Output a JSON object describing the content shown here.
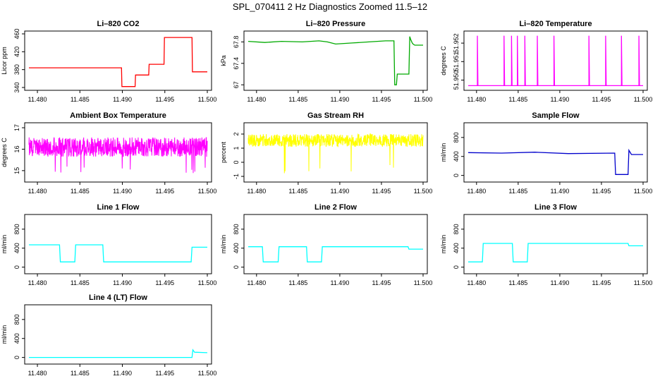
{
  "title": "SPL_070411  2 Hz Diagnostics Zoomed 11.5–12",
  "x_ticks": [
    "11.480",
    "11.485",
    "11.490",
    "11.495",
    "11.500"
  ],
  "chart_data": [
    {
      "type": "line",
      "title": "Li–820 CO2",
      "ylabel": "Licor ppm",
      "color": "#ff0000",
      "xlim": [
        11.479,
        11.5
      ],
      "ylim": [
        340,
        460
      ],
      "yticks": [
        340,
        380,
        420,
        460
      ],
      "series": [
        {
          "x": [
            11.479,
            11.4899,
            11.48995,
            11.4915,
            11.49155,
            11.4931,
            11.49315,
            11.4949,
            11.49495,
            11.4982,
            11.49825,
            11.5
          ],
          "y": [
            384,
            384,
            342,
            342,
            368,
            368,
            392,
            392,
            452,
            452,
            375,
            375
          ]
        }
      ]
    },
    {
      "type": "line",
      "title": "Li–820 Pressure",
      "ylabel": "kPa",
      "color": "#00aa00",
      "xlim": [
        11.479,
        11.5
      ],
      "ylim": [
        66.95,
        67.95
      ],
      "yticks": [
        67.0,
        67.4,
        67.8
      ],
      "series": [
        {
          "x": [
            11.479,
            11.481,
            11.483,
            11.4855,
            11.4875,
            11.4885,
            11.4895,
            11.4915,
            11.4935,
            11.4955,
            11.4965,
            11.4966,
            11.4968,
            11.4969,
            11.4983,
            11.4984,
            11.4985,
            11.4987,
            11.4988,
            11.499,
            11.5
          ],
          "y": [
            67.81,
            67.79,
            67.81,
            67.8,
            67.82,
            67.8,
            67.76,
            67.78,
            67.8,
            67.82,
            67.82,
            67.0,
            67.0,
            67.2,
            67.2,
            67.9,
            67.85,
            67.78,
            67.76,
            67.74,
            67.74
          ]
        }
      ]
    },
    {
      "type": "line",
      "title": "Li–820 Temperature",
      "ylabel": "degrees C",
      "color": "#ff00ff",
      "xlim": [
        11.479,
        11.5
      ],
      "ylim": [
        51.9496,
        51.9525
      ],
      "yticks": [
        51.95,
        51.951,
        51.952
      ],
      "ytick_labels": [
        "51.950",
        "51.951",
        "51.952"
      ],
      "baseline": 51.9497,
      "spike_top": 51.9524,
      "spikes_x": [
        11.4801,
        11.4833,
        11.4842,
        11.4849,
        11.4858,
        11.4873,
        11.4893,
        11.4935,
        11.4955,
        11.4974,
        11.4995
      ]
    },
    {
      "type": "line",
      "title": "Ambient Box Temperature",
      "ylabel": "degrees C",
      "color": "#ff00ff",
      "xlim": [
        11.479,
        11.5
      ],
      "ylim": [
        14.6,
        17.1
      ],
      "yticks": [
        15.0,
        16.0,
        17.0
      ],
      "noise": {
        "center": 16.1,
        "amplitude": 0.45,
        "min": 14.8,
        "max": 17.0
      }
    },
    {
      "type": "line",
      "title": "Gas Stream RH",
      "ylabel": "percent",
      "color": "#ffff00",
      "xlim": [
        11.479,
        11.5
      ],
      "ylim": [
        -1.2,
        2.6
      ],
      "yticks": [
        -1,
        0,
        1,
        2
      ],
      "noise": {
        "center": 1.55,
        "amplitude": 0.45,
        "min": -1.1,
        "max": 2.6
      }
    },
    {
      "type": "line",
      "title": "Sample Flow",
      "ylabel": "ml/min",
      "color": "#0000cc",
      "xlim": [
        11.479,
        11.5
      ],
      "ylim": [
        -80,
        1050
      ],
      "yticks": [
        0,
        400,
        800
      ],
      "series": [
        {
          "x": [
            11.479,
            11.483,
            11.487,
            11.491,
            11.4966,
            11.4967,
            11.4982,
            11.4983,
            11.4986,
            11.5
          ],
          "y": [
            480,
            470,
            490,
            460,
            470,
            20,
            20,
            530,
            440,
            440
          ]
        }
      ]
    },
    {
      "type": "line",
      "title": "Line 1 Flow",
      "ylabel": "ml/min",
      "color": "#00ffff",
      "xlim": [
        11.479,
        11.5
      ],
      "ylim": [
        -80,
        1050
      ],
      "yticks": [
        0,
        400,
        800
      ],
      "series": [
        {
          "x": [
            11.479,
            11.4826,
            11.4827,
            11.4844,
            11.4845,
            11.4877,
            11.4878,
            11.4981,
            11.4982,
            11.5
          ],
          "y": [
            470,
            470,
            110,
            110,
            470,
            470,
            110,
            110,
            420,
            420
          ]
        }
      ]
    },
    {
      "type": "line",
      "title": "Line 2 Flow",
      "ylabel": "ml/min",
      "color": "#00ffff",
      "xlim": [
        11.479,
        11.5
      ],
      "ylim": [
        -80,
        1050
      ],
      "yticks": [
        0,
        400,
        800
      ],
      "series": [
        {
          "x": [
            11.479,
            11.4807,
            11.4808,
            11.4826,
            11.4827,
            11.486,
            11.4861,
            11.4878,
            11.4879,
            11.4982,
            11.4983,
            11.5
          ],
          "y": [
            430,
            430,
            110,
            110,
            430,
            430,
            110,
            110,
            430,
            430,
            380,
            380
          ]
        }
      ]
    },
    {
      "type": "line",
      "title": "Line 3 Flow",
      "ylabel": "ml/min",
      "color": "#00ffff",
      "xlim": [
        11.479,
        11.5
      ],
      "ylim": [
        -80,
        1050
      ],
      "yticks": [
        0,
        400,
        800
      ],
      "series": [
        {
          "x": [
            11.479,
            11.4807,
            11.4808,
            11.4843,
            11.4844,
            11.4861,
            11.4862,
            11.4982,
            11.4983,
            11.5
          ],
          "y": [
            110,
            110,
            500,
            500,
            110,
            110,
            500,
            500,
            450,
            450
          ]
        }
      ]
    },
    {
      "type": "line",
      "title": "Line 4 (LT) Flow",
      "ylabel": "ml/min",
      "color": "#00ffff",
      "xlim": [
        11.479,
        11.5
      ],
      "ylim": [
        -80,
        1050
      ],
      "yticks": [
        0,
        400,
        800
      ],
      "series": [
        {
          "x": [
            11.479,
            11.4982,
            11.4983,
            11.4985,
            11.5
          ],
          "y": [
            0,
            0,
            160,
            110,
            100
          ]
        }
      ]
    }
  ]
}
